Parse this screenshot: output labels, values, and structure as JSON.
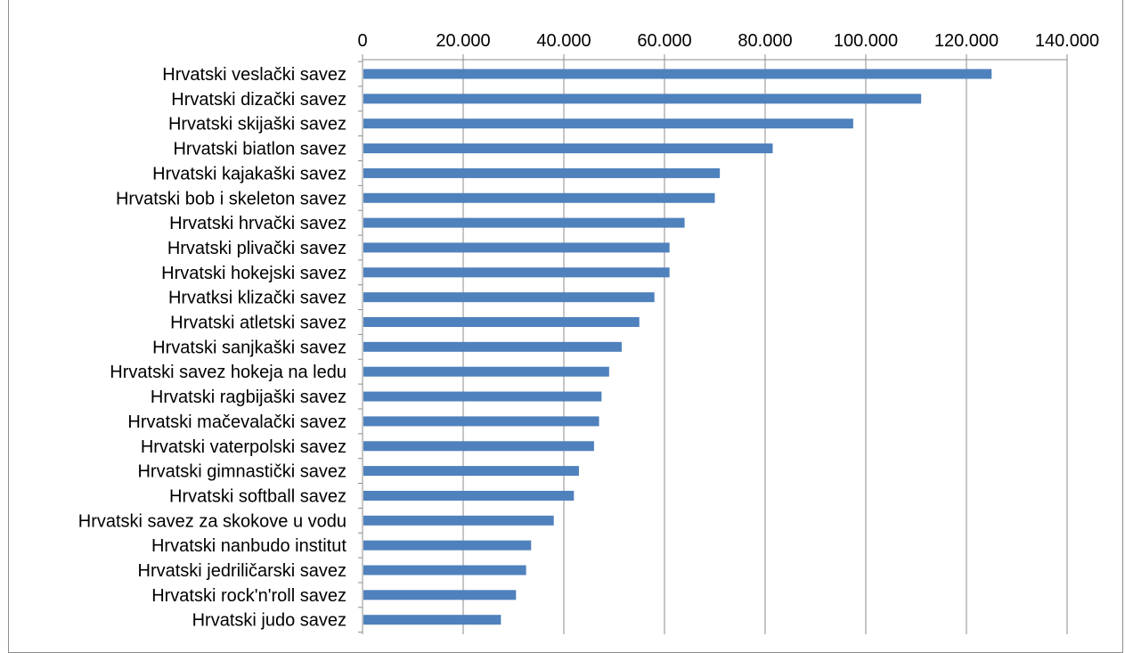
{
  "chart_data": {
    "type": "bar",
    "orientation": "horizontal",
    "title": "",
    "xlabel": "",
    "ylabel": "",
    "xlim": [
      0,
      140000
    ],
    "x_ticks": [
      0,
      20000,
      40000,
      60000,
      80000,
      100000,
      120000,
      140000
    ],
    "x_tick_labels": [
      "0",
      "20.000",
      "40.000",
      "60.000",
      "80.000",
      "100.000",
      "120.000",
      "140.000"
    ],
    "x_axis_position": "top",
    "grid": true,
    "bar_color": "#4f81bd",
    "categories": [
      "Hrvatski veslački savez",
      "Hrvatski dizački savez",
      "Hrvatski skijaški savez",
      "Hrvatski biatlon savez",
      "Hrvatski kajakaški savez",
      "Hrvatski bob i skeleton savez",
      "Hrvatski hrvački savez",
      "Hrvatski plivački savez",
      "Hrvatski hokejski savez",
      "Hrvatksi klizački savez",
      "Hrvatski atletski savez",
      "Hrvatski sanjkaški savez",
      "Hrvatski savez hokeja na ledu",
      "Hrvatski ragbijaški savez",
      "Hrvatski mačevalački savez",
      "Hrvatski vaterpolski savez",
      "Hrvatski gimnastički savez",
      "Hrvatski softball savez",
      "Hrvatski savez za skokove u vodu",
      "Hrvatski nanbudo institut",
      "Hrvatski jedriličarski savez",
      "Hrvatski rock'n'roll savez",
      "Hrvatski judo savez"
    ],
    "values": [
      125000,
      111000,
      97500,
      81500,
      71000,
      70000,
      64000,
      61000,
      61000,
      58000,
      55000,
      51500,
      49000,
      47500,
      47000,
      46000,
      43000,
      42000,
      38000,
      33500,
      32500,
      30500,
      27500
    ]
  }
}
